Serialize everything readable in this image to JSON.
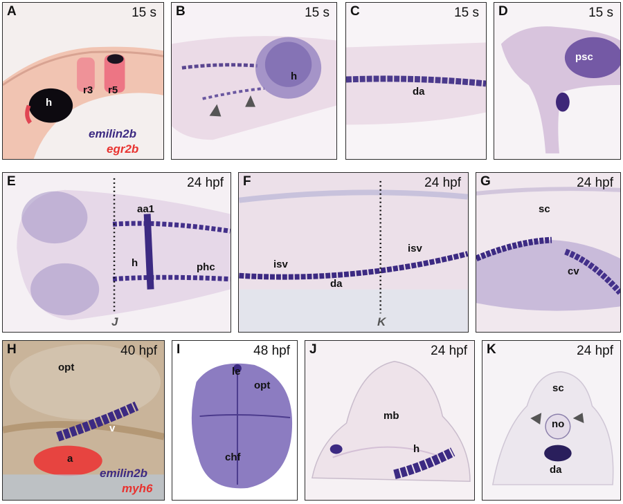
{
  "colors": {
    "probe_purple": "#3c2a82",
    "probe_red": "#e8322f",
    "tissue_pink": "#ecd9e6",
    "border": "#2a2a2a"
  },
  "panels": {
    "A": {
      "letter": "A",
      "stage": "15 s",
      "labels": [
        "h",
        "r3",
        "r5"
      ],
      "legend": [
        "emilin2b",
        "egr2b"
      ]
    },
    "B": {
      "letter": "B",
      "stage": "15 s",
      "labels": [
        "h"
      ]
    },
    "C": {
      "letter": "C",
      "stage": "15 s",
      "labels": [
        "da"
      ]
    },
    "D": {
      "letter": "D",
      "stage": "15 s",
      "labels": [
        "psc"
      ]
    },
    "E": {
      "letter": "E",
      "stage": "24 hpf",
      "labels": [
        "aa1",
        "h",
        "phc"
      ],
      "section": "J"
    },
    "F": {
      "letter": "F",
      "stage": "24 hpf",
      "labels": [
        "isv",
        "isv",
        "da"
      ],
      "section": "K"
    },
    "G": {
      "letter": "G",
      "stage": "24 hpf",
      "labels": [
        "sc",
        "cv"
      ]
    },
    "H": {
      "letter": "H",
      "stage": "40 hpf",
      "labels": [
        "opt",
        "v",
        "a"
      ],
      "legend": [
        "emilin2b",
        "myh6"
      ]
    },
    "I": {
      "letter": "I",
      "stage": "48 hpf",
      "labels": [
        "le",
        "opt",
        "chf"
      ]
    },
    "J": {
      "letter": "J",
      "stage": "24 hpf",
      "labels": [
        "mb",
        "h"
      ]
    },
    "K": {
      "letter": "K",
      "stage": "24 hpf",
      "labels": [
        "sc",
        "no",
        "da"
      ]
    }
  }
}
